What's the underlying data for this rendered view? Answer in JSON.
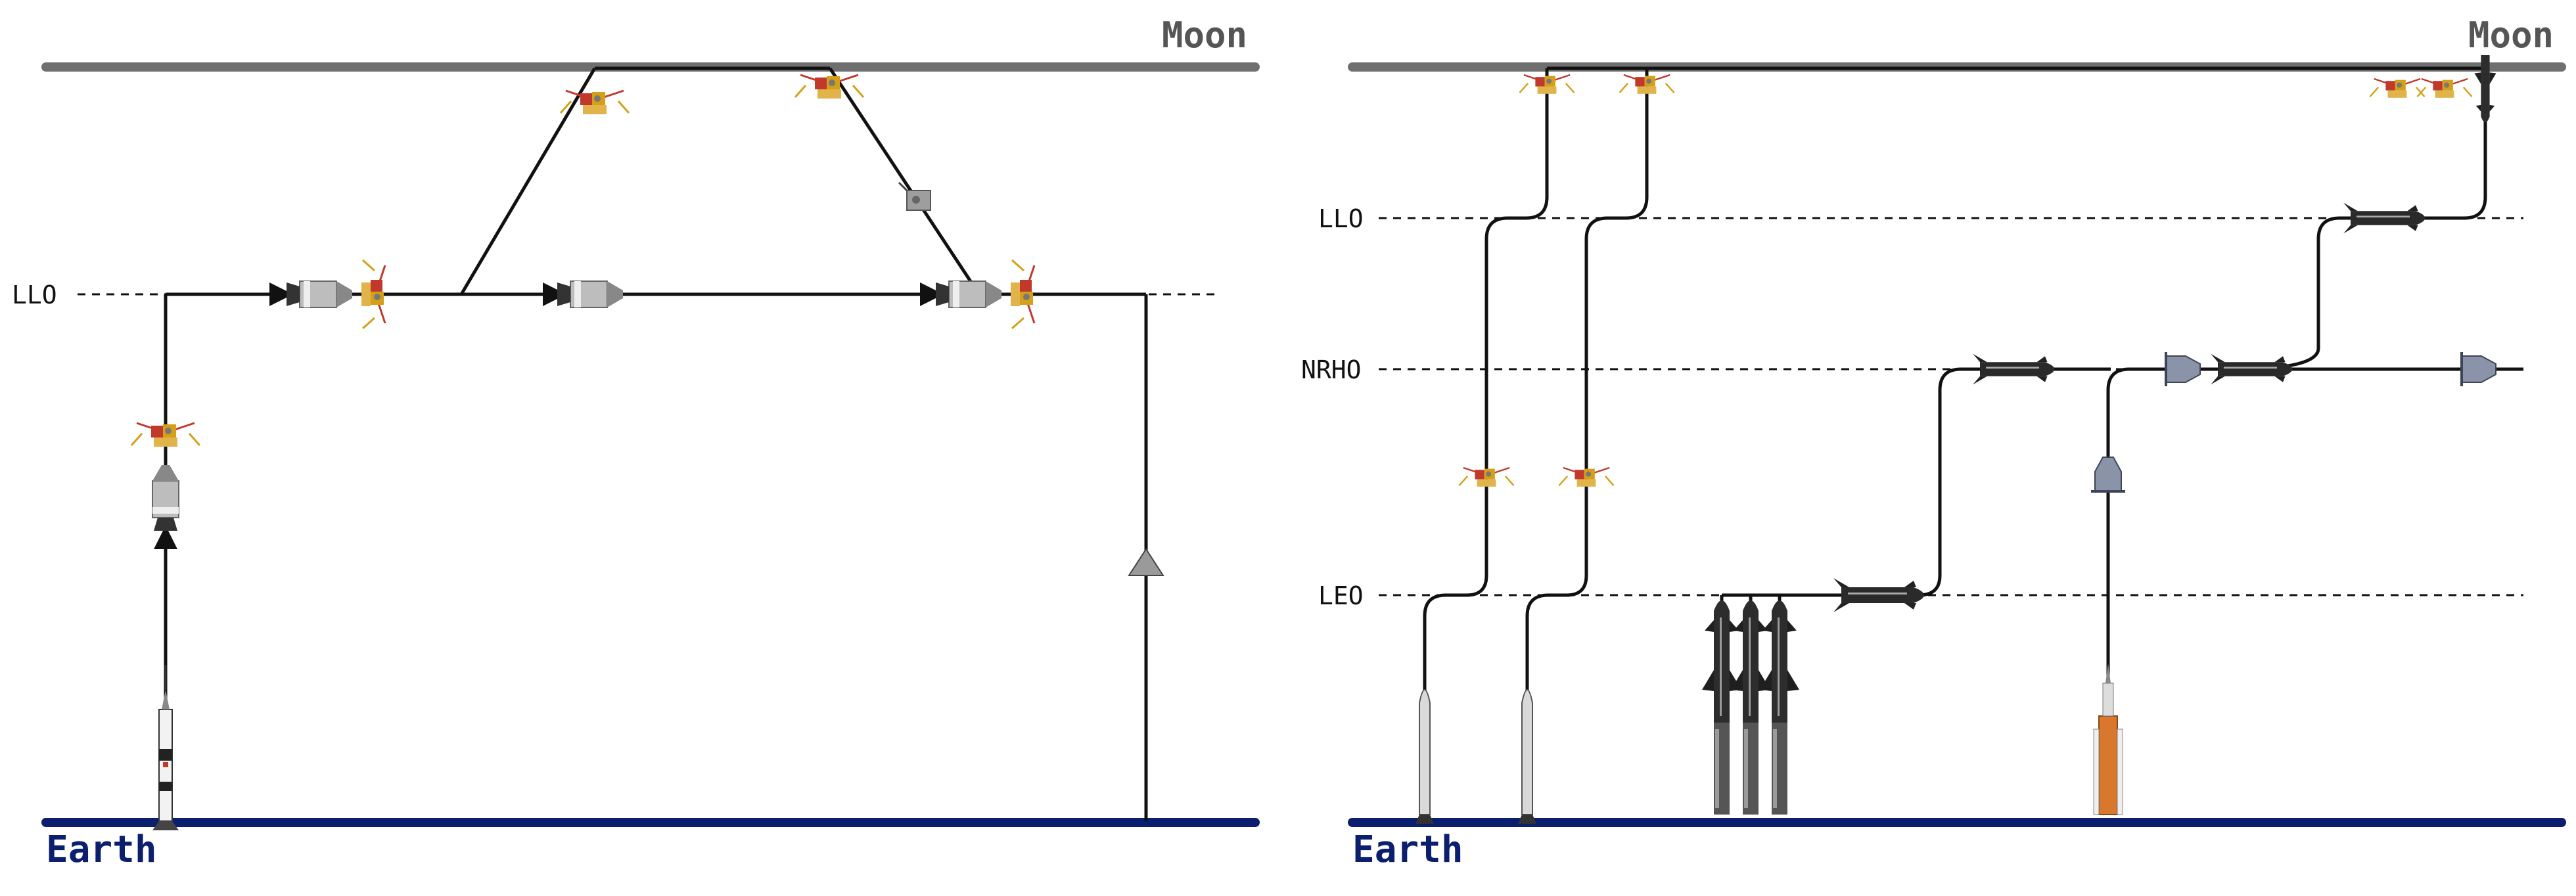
{
  "left_panel": {
    "moon_label": "Moon",
    "earth_label": "Earth",
    "orbit_labels": {
      "llo": "LLO"
    }
  },
  "right_panel": {
    "moon_label": "Moon",
    "earth_label": "Earth",
    "orbit_labels": {
      "llo": "LLO",
      "nrho": "NRHO",
      "leo": "LEO"
    }
  },
  "colors": {
    "moon_surface": "#6f6f6f",
    "earth_surface": "#0b1f6e",
    "path": "#111111",
    "lander_gold": "#d4a017",
    "lander_red": "#c0392b",
    "sls_orange": "#d9782d"
  },
  "icons": [
    "lunar-lander-icon",
    "apollo-csm-icon",
    "saturn-v-icon",
    "starship-icon",
    "orion-icon",
    "sls-rocket-icon",
    "small-rocket-icon",
    "re-entry-capsule-icon"
  ]
}
